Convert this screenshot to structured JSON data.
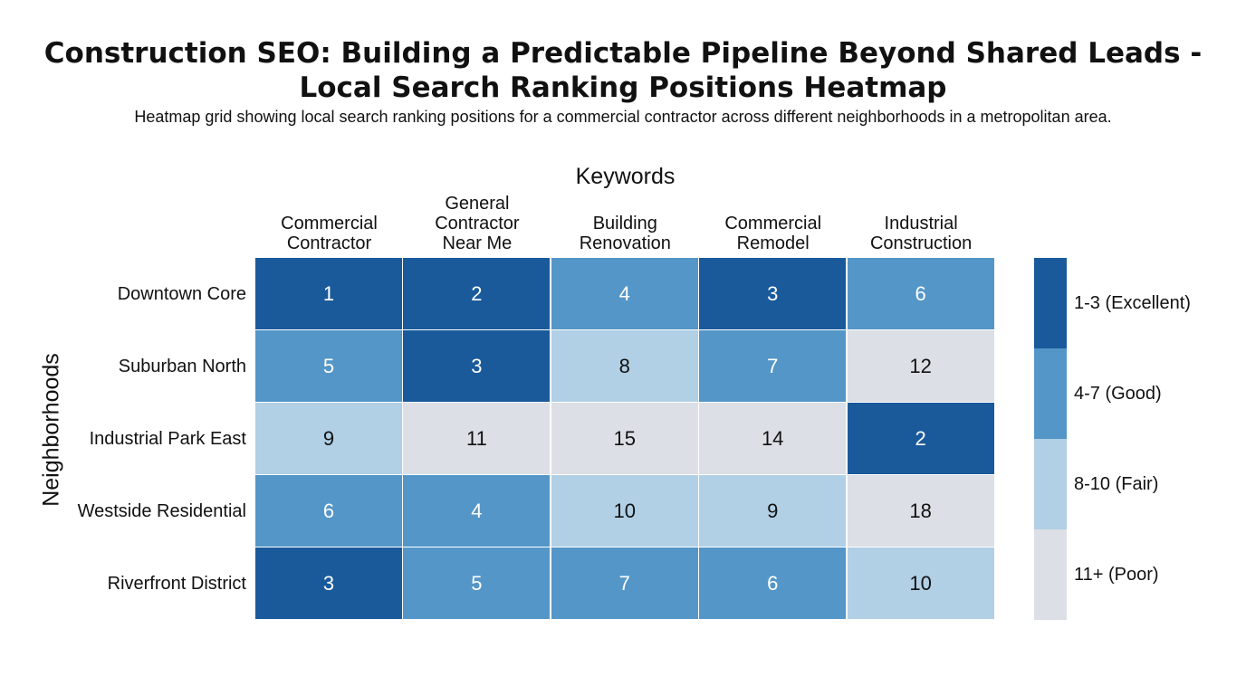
{
  "chart_data": {
    "type": "heatmap",
    "title": "Construction SEO: Building a Predictable Pipeline Beyond Shared Leads - Local Search Ranking Positions Heatmap",
    "subtitle": "Heatmap grid showing local search ranking positions for a commercial contractor across different neighborhoods in a metropolitan area.",
    "xlabel": "Keywords",
    "ylabel": "Neighborhoods",
    "columns": [
      "Commercial\nContractor",
      "General\nContractor\nNear Me",
      "Building\nRenovation",
      "Commercial\nRemodel",
      "Industrial\nConstruction"
    ],
    "rows": [
      "Downtown Core",
      "Suburban North",
      "Industrial Park East",
      "Westside Residential",
      "Riverfront District"
    ],
    "values": [
      [
        1,
        2,
        4,
        3,
        6
      ],
      [
        5,
        3,
        8,
        7,
        12
      ],
      [
        9,
        11,
        15,
        14,
        2
      ],
      [
        6,
        4,
        10,
        9,
        18
      ],
      [
        3,
        5,
        7,
        6,
        10
      ]
    ],
    "legend": [
      {
        "label": "1-3 (Excellent)",
        "min": 1,
        "max": 3,
        "color": "#1a5a9b",
        "text_color": "#ffffff"
      },
      {
        "label": "4-7 (Good)",
        "min": 4,
        "max": 7,
        "color": "#5496c8",
        "text_color": "#ffffff"
      },
      {
        "label": "8-10 (Fair)",
        "min": 8,
        "max": 10,
        "color": "#b1cfe5",
        "text_color": "#111111"
      },
      {
        "label": "11+ (Poor)",
        "min": 11,
        "max": 999,
        "color": "#dcdfe5",
        "text_color": "#111111"
      }
    ],
    "legend_position": "right"
  }
}
